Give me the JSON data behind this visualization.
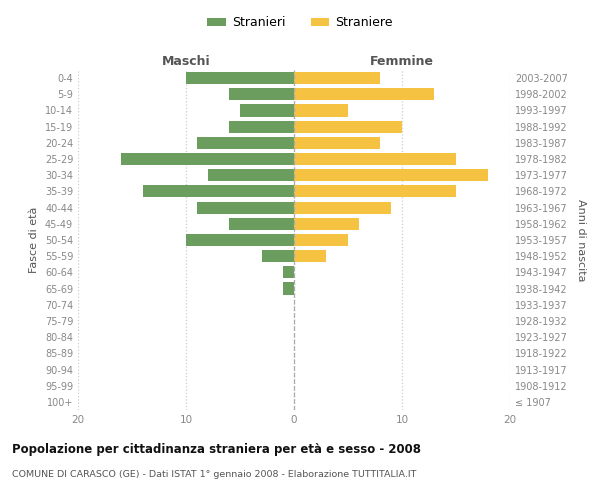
{
  "age_groups": [
    "100+",
    "95-99",
    "90-94",
    "85-89",
    "80-84",
    "75-79",
    "70-74",
    "65-69",
    "60-64",
    "55-59",
    "50-54",
    "45-49",
    "40-44",
    "35-39",
    "30-34",
    "25-29",
    "20-24",
    "15-19",
    "10-14",
    "5-9",
    "0-4"
  ],
  "birth_years": [
    "≤ 1907",
    "1908-1912",
    "1913-1917",
    "1918-1922",
    "1923-1927",
    "1928-1932",
    "1933-1937",
    "1938-1942",
    "1943-1947",
    "1948-1952",
    "1953-1957",
    "1958-1962",
    "1963-1967",
    "1968-1972",
    "1973-1977",
    "1978-1982",
    "1983-1987",
    "1988-1992",
    "1993-1997",
    "1998-2002",
    "2003-2007"
  ],
  "maschi": [
    0,
    0,
    0,
    0,
    0,
    0,
    0,
    1,
    1,
    3,
    10,
    6,
    9,
    14,
    8,
    16,
    9,
    6,
    5,
    6,
    10
  ],
  "femmine": [
    0,
    0,
    0,
    0,
    0,
    0,
    0,
    0,
    0,
    3,
    5,
    6,
    9,
    15,
    18,
    15,
    8,
    10,
    5,
    13,
    8
  ],
  "color_maschi": "#6b9e5e",
  "color_femmine": "#f5c242",
  "xlim": 20,
  "title": "Popolazione per cittadinanza straniera per età e sesso - 2008",
  "subtitle": "COMUNE DI CARASCO (GE) - Dati ISTAT 1° gennaio 2008 - Elaborazione TUTTITALIA.IT",
  "xlabel_left": "Maschi",
  "xlabel_right": "Femmine",
  "ylabel_left": "Fasce di età",
  "ylabel_right": "Anni di nascita",
  "legend_maschi": "Stranieri",
  "legend_femmine": "Straniere",
  "bg_color": "#ffffff",
  "grid_color": "#cccccc",
  "tick_color": "#888888"
}
